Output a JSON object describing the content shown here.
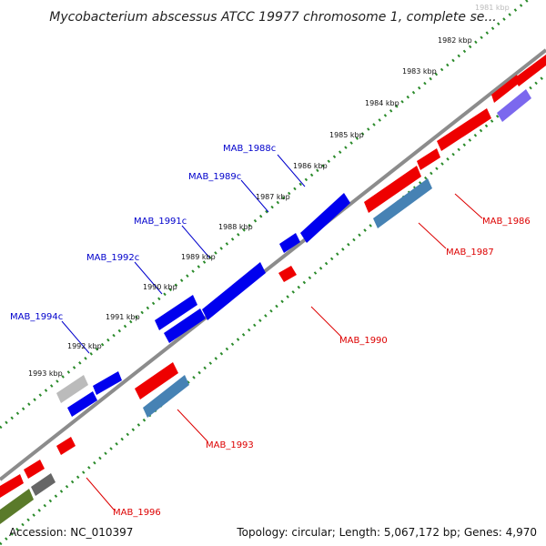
{
  "title": "Mycobacterium abscessus ATCC 19977 chromosome 1, complete se...",
  "footer": {
    "accession": "Accession: NC_010397",
    "topology": "Topology: circular; Length: 5,067,172 bp; Genes: 4,970"
  },
  "colors": {
    "backbone": "#8c8c8c",
    "tick_track": "#2a8a2a",
    "forward_gene": "#ee0000",
    "reverse_gene": "#0000ee",
    "rrna_gene": "#4682b4",
    "pseudo_gene": "#7b68ee",
    "other_gene": "#5a7a2a",
    "grey_gene": "#999999",
    "forward_label": "#dd0000",
    "reverse_label": "#0000cc"
  },
  "ticks": [
    "1981 kbp",
    "1982 kbp",
    "1983 kbp",
    "1984 kbp",
    "1985 kbp",
    "1986 kbp",
    "1987 kbp",
    "1988 kbp",
    "1989 kbp",
    "1990 kbp",
    "1991 kbp",
    "1992 kbp",
    "1993 kbp"
  ],
  "reverse_labels": [
    "MAB_1988c",
    "MAB_1989c",
    "MAB_1991c",
    "MAB_1992c",
    "MAB_1994c"
  ],
  "forward_labels": [
    "MAB_1986",
    "MAB_1987",
    "MAB_1990",
    "MAB_1993",
    "MAB_1996"
  ]
}
